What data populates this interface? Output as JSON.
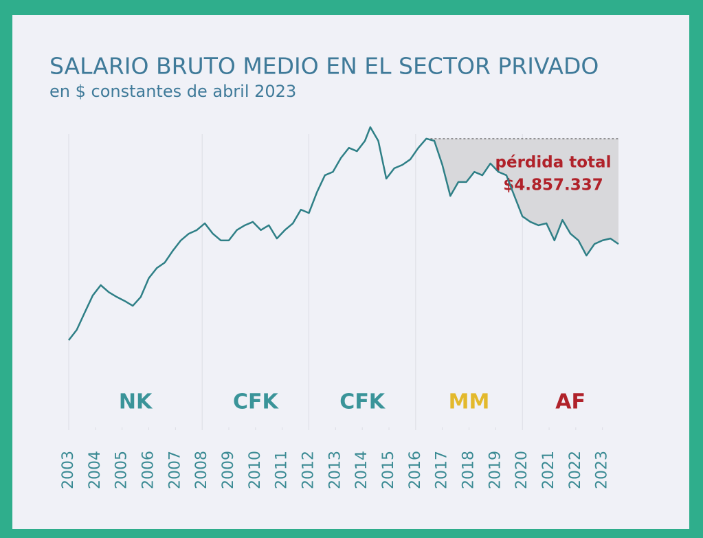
{
  "chart_data": {
    "type": "line",
    "title": "SALARIO BRUTO MEDIO EN EL SECTOR PRIVADO",
    "subtitle": "en $ constantes de abril 2023",
    "xlim": [
      2003,
      2023.6
    ],
    "xticks": [
      2003,
      2004,
      2005,
      2006,
      2007,
      2008,
      2009,
      2010,
      2011,
      2012,
      2013,
      2014,
      2015,
      2016,
      2017,
      2018,
      2019,
      2020,
      2021,
      2022,
      2023
    ],
    "ylim": [
      0,
      100
    ],
    "series": [
      {
        "color": "#2e7f86",
        "x": [
          2003.0,
          2003.3,
          2003.6,
          2003.9,
          2004.2,
          2004.5,
          2004.8,
          2005.1,
          2005.4,
          2005.7,
          2006.0,
          2006.3,
          2006.6,
          2006.9,
          2007.2,
          2007.5,
          2007.8,
          2008.1,
          2008.4,
          2008.7,
          2009.0,
          2009.3,
          2009.6,
          2009.9,
          2010.2,
          2010.5,
          2010.8,
          2011.1,
          2011.4,
          2011.7,
          2012.0,
          2012.3,
          2012.6,
          2012.9,
          2013.2,
          2013.5,
          2013.8,
          2014.1,
          2014.3,
          2014.6,
          2014.9,
          2015.2,
          2015.5,
          2015.8,
          2016.1,
          2016.4,
          2016.7,
          2017.0,
          2017.3,
          2017.6,
          2017.9,
          2018.2,
          2018.5,
          2018.8,
          2019.1,
          2019.4,
          2019.7,
          2020.0,
          2020.3,
          2020.6,
          2020.9,
          2021.2,
          2021.5,
          2021.8,
          2022.1,
          2022.4,
          2022.7,
          2023.0,
          2023.3,
          2023.6
        ],
        "values": [
          7.1,
          11.4,
          18.6,
          25.7,
          30,
          27.1,
          25.1,
          23.4,
          21.4,
          25.1,
          32.9,
          37.1,
          39.4,
          44.3,
          48.6,
          51.4,
          52.9,
          55.7,
          51.4,
          48.6,
          48.6,
          52.9,
          54.9,
          56.3,
          52.9,
          54.9,
          49.4,
          52.9,
          55.7,
          61.4,
          60,
          68.6,
          75.7,
          77.1,
          82.9,
          87.1,
          85.7,
          90,
          95.7,
          90,
          74.3,
          78.6,
          80,
          82.3,
          87.1,
          90.9,
          90,
          80,
          67.1,
          72.9,
          72.9,
          77.1,
          75.7,
          80.6,
          77.1,
          75.7,
          67.1,
          58.6,
          56.3,
          54.9,
          55.7,
          48.6,
          57.1,
          51.4,
          48.6,
          42.3,
          47.1,
          48.6,
          49.4,
          47.1
        ]
      }
    ],
    "eras": [
      {
        "label": "NK",
        "start": 2003,
        "color": "#3a9499"
      },
      {
        "label": "CFK",
        "start": 2008,
        "color": "#3a9499"
      },
      {
        "label": "CFK",
        "start": 2012,
        "color": "#3a9499"
      },
      {
        "label": "MM",
        "start": 2016,
        "color": "#e3b92c"
      },
      {
        "label": "AF",
        "start": 2020,
        "color": "#b0222a"
      }
    ],
    "loss": {
      "start": 2016.4,
      "level": 90.9,
      "color": "#d8d8db",
      "text": "pérdida total",
      "amount": "$4.857.337",
      "text_color": "#b0222a"
    }
  }
}
